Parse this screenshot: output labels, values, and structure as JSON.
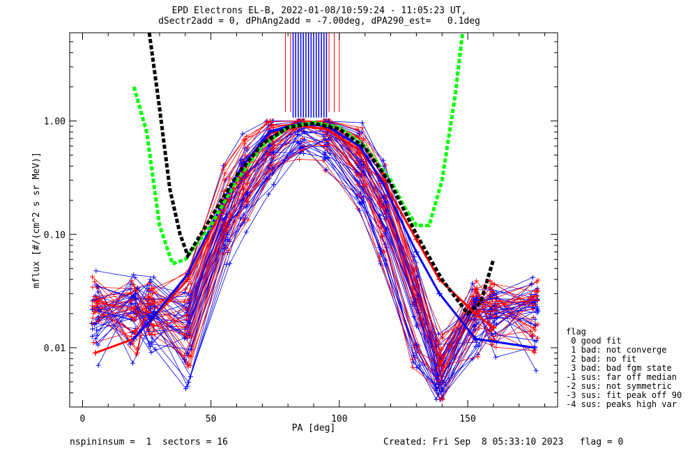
{
  "header": {
    "title_line1": "EPD Electrons EL-B, 2022-01-08/10:59:24 - 11:05:23 UT,",
    "title_line2": "dSectr2add = 0, dPhAng2add = -7.00deg, dPA290_est=   0.1deg"
  },
  "footer": {
    "left": "nspininsum =  1  sectors = 16",
    "right": "Created: Fri Sep  8 05:33:10 2023   flag = 0"
  },
  "flag_legend": {
    "title": "flag",
    "items": [
      " 0 good fit",
      " 1 bad: not converge",
      " 2 bad: no fit",
      " 3 bad: bad fgm state",
      "-1 sus: far off median",
      "-2 sus: not symmetric",
      "-3 sus: fit peak off 90",
      "-4 sus: peaks high var"
    ]
  },
  "chart_data": {
    "type": "line",
    "xlabel": "PA [deg]",
    "ylabel": "mflux [#/(cm^2 s sr MeV)]",
    "xlim": [
      -5,
      185
    ],
    "ylim": [
      0.003,
      6.0
    ],
    "yscale": "log",
    "x_ticks": [
      0,
      50,
      100,
      150
    ],
    "x_tick_labels": [
      "0",
      "50",
      "100",
      "150"
    ],
    "y_ticks": [
      0.01,
      0.1,
      1.0
    ],
    "y_tick_labels": [
      "0.01",
      "0.10",
      "1.00"
    ],
    "grid": false,
    "colors": {
      "red": "#ff0000",
      "blue": "#0000ff",
      "green": "#00ff00",
      "black": "#000000"
    },
    "sector_pa": [
      5,
      20,
      27,
      41,
      56,
      63,
      73,
      85,
      95,
      108,
      117,
      130,
      139,
      153,
      160,
      176
    ],
    "spike_x_red": [
      79,
      81,
      83,
      84,
      86,
      88,
      90,
      92,
      94,
      96,
      98,
      100
    ],
    "spike_x_blue": [
      82,
      83,
      84,
      85,
      86,
      87,
      88,
      89,
      90,
      91,
      92,
      93,
      94,
      95
    ],
    "spike_y_low": 1.2,
    "series": [
      {
        "color": "red",
        "style": "median-ish",
        "x": [
          5,
          20,
          41,
          56,
          63,
          73,
          85,
          95,
          108,
          117,
          130,
          139,
          153,
          160
        ],
        "y": [
          0.009,
          0.012,
          0.04,
          0.2,
          0.38,
          0.78,
          0.9,
          0.85,
          0.55,
          0.3,
          0.09,
          0.04,
          0.02,
          0.015
        ]
      },
      {
        "color": "blue",
        "style": "median-ish",
        "x": [
          20,
          27,
          41,
          56,
          63,
          73,
          85,
          95,
          108,
          117,
          130,
          139,
          153,
          176
        ],
        "y": [
          0.012,
          0.018,
          0.045,
          0.22,
          0.42,
          0.8,
          0.95,
          0.9,
          0.6,
          0.28,
          0.07,
          0.03,
          0.012,
          0.01
        ]
      },
      {
        "color": "green",
        "style": "fit-dashed",
        "x": [
          20,
          25,
          30,
          35,
          40,
          50,
          60,
          70,
          80,
          90,
          100,
          110,
          120,
          125,
          130,
          135,
          140,
          145,
          148
        ],
        "y": [
          2.0,
          0.8,
          0.12,
          0.055,
          0.06,
          0.12,
          0.3,
          0.6,
          0.88,
          0.97,
          0.88,
          0.6,
          0.3,
          0.18,
          0.12,
          0.12,
          0.3,
          1.6,
          6.0
        ]
      },
      {
        "color": "black",
        "style": "fit-dashed",
        "x": [
          26,
          30,
          34,
          38,
          41,
          50,
          60,
          70,
          80,
          90,
          100,
          110,
          120,
          130,
          140,
          150,
          155,
          160
        ],
        "y": [
          6.0,
          1.3,
          0.25,
          0.1,
          0.065,
          0.14,
          0.33,
          0.63,
          0.88,
          0.95,
          0.85,
          0.58,
          0.28,
          0.1,
          0.04,
          0.02,
          0.025,
          0.06
        ]
      }
    ]
  }
}
